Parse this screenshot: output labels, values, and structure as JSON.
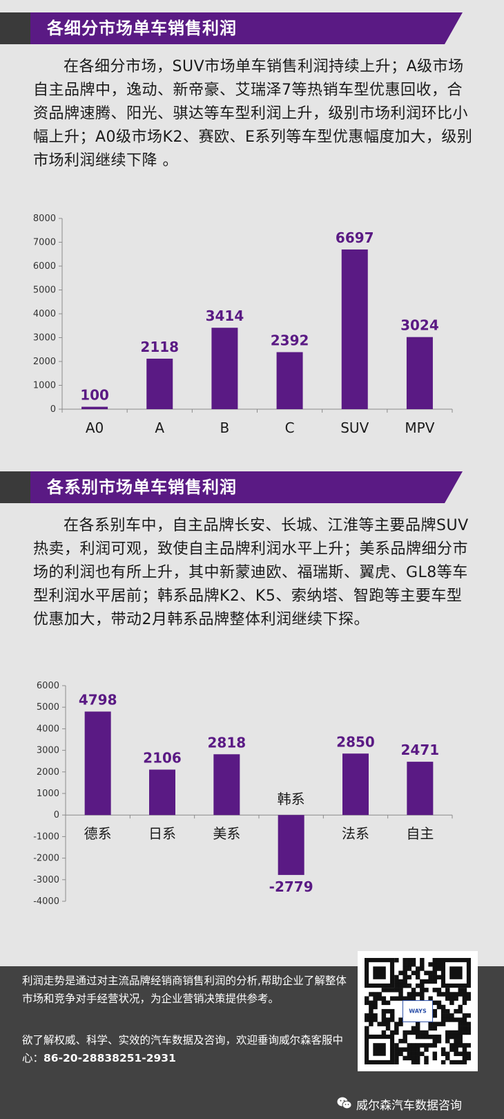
{
  "section1": {
    "title": "各细分市场单车销售利润",
    "paragraph": "在各细分市场，SUV市场单车销售利润持续上升；A级市场自主品牌中，逸动、新帝豪、艾瑞泽7等热销车型优惠回收，合资品牌速腾、阳光、骐达等车型利润上升，级别市场利润环比小幅上升；A0级市场K2、赛欧、E系列等车型优惠幅度加大，级别市场利润继续下降 。"
  },
  "section2": {
    "title": "各系别市场单车销售利润",
    "paragraph": "在各系别车中，自主品牌长安、长城、江淮等主要品牌SUV热卖，利润可观，致使自主品牌利润水平上升；美系品牌细分市场的利润也有所上升，其中新蒙迪欧、福瑞斯、翼虎、GL8等车型利润水平居前；韩系品牌K2、K5、索纳塔、智跑等主要车型优惠加大，带动2月韩系品牌整体利润继续下探。"
  },
  "chart_data": [
    {
      "type": "bar",
      "categories": [
        "A0",
        "A",
        "B",
        "C",
        "SUV",
        "MPV"
      ],
      "values": [
        100,
        2118,
        3414,
        2392,
        6697,
        3024
      ],
      "data_labels": [
        "100",
        "2118",
        "3414",
        "2392",
        "6697",
        "3024"
      ],
      "yticks": [
        "0",
        "1000",
        "2000",
        "3000",
        "4000",
        "5000",
        "6000",
        "7000",
        "8000"
      ],
      "ylim": [
        0,
        8000
      ],
      "grid": false,
      "bar_color": "#5a1a84"
    },
    {
      "type": "bar",
      "categories": [
        "德系",
        "日系",
        "美系",
        "韩系",
        "法系",
        "自主"
      ],
      "values": [
        4798,
        2106,
        2818,
        -2779,
        2850,
        2471
      ],
      "data_labels": [
        "4798",
        "2106",
        "2818",
        "-2779",
        "2850",
        "2471"
      ],
      "yticks": [
        "-4000",
        "-3000",
        "-2000",
        "-1000",
        "0",
        "1000",
        "2000",
        "3000",
        "4000",
        "5000",
        "6000"
      ],
      "ylim": [
        -4000,
        6000
      ],
      "grid": false,
      "bar_color": "#5a1a84"
    }
  ],
  "footer": {
    "description": "利润走势是通过对主流品牌经销商销售利润的分析,帮助企业了解整体市场和竞争对手经营状况，为企业营销决策提供参考。",
    "contact_prefix": "欲了解权威、科学、实效的汽车数据及咨询，欢迎垂询威尔森客服中心：",
    "phone": "86-20-28838251-2931",
    "qr_logo_text": "WAYS",
    "brand": "威尔森汽车数据咨询"
  },
  "colors": {
    "accent": "#5a1a84",
    "banner_dark": "#3a3a3a",
    "footer_bg": "#424242",
    "background": "#e5e5e5"
  }
}
